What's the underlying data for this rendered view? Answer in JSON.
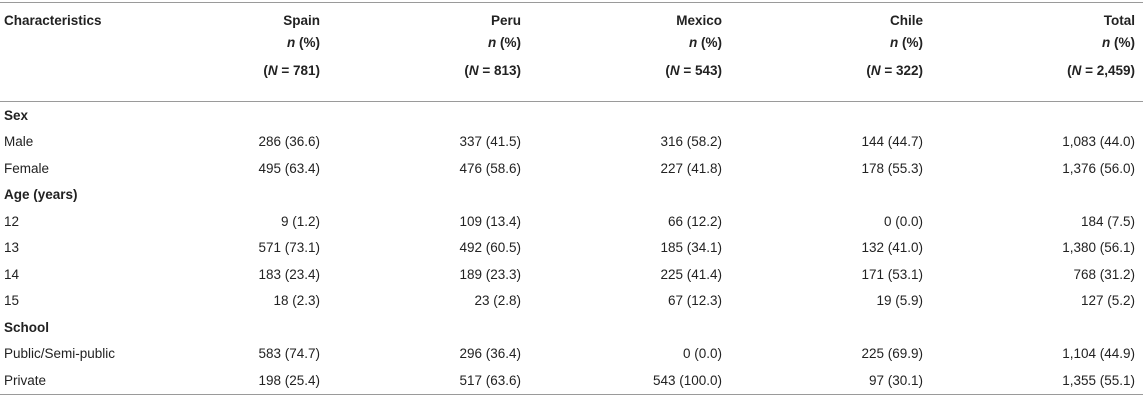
{
  "header": {
    "col0": "Characteristics",
    "countries": [
      {
        "name": "Spain",
        "sub": "n (%)",
        "N": "(N = 781)"
      },
      {
        "name": "Peru",
        "sub": "n (%)",
        "N": "(N = 813)"
      },
      {
        "name": "Mexico",
        "sub": "n (%)",
        "N": "(N = 543)"
      },
      {
        "name": "Chile",
        "sub": "n (%)",
        "N": "(N = 322)"
      },
      {
        "name": "Total",
        "sub": "n (%)",
        "N": "(N = 2,459)"
      }
    ]
  },
  "sections": [
    {
      "title": "Sex",
      "rows": [
        {
          "label": "Male",
          "values": [
            "286 (36.6)",
            "337 (41.5)",
            "316 (58.2)",
            "144 (44.7)",
            "1,083 (44.0)"
          ]
        },
        {
          "label": "Female",
          "values": [
            "495 (63.4)",
            "476 (58.6)",
            "227 (41.8)",
            "178 (55.3)",
            "1,376 (56.0)"
          ]
        }
      ]
    },
    {
      "title": "Age (years)",
      "rows": [
        {
          "label": "12",
          "values": [
            "9 (1.2)",
            "109 (13.4)",
            "66 (12.2)",
            "0 (0.0)",
            "184 (7.5)"
          ]
        },
        {
          "label": "13",
          "values": [
            "571 (73.1)",
            "492 (60.5)",
            "185 (34.1)",
            "132 (41.0)",
            "1,380 (56.1)"
          ]
        },
        {
          "label": "14",
          "values": [
            "183 (23.4)",
            "189 (23.3)",
            "225 (41.4)",
            "171 (53.1)",
            "768 (31.2)"
          ]
        },
        {
          "label": "15",
          "values": [
            "18 (2.3)",
            "23 (2.8)",
            "67 (12.3)",
            "19 (5.9)",
            "127 (5.2)"
          ]
        }
      ]
    },
    {
      "title": "School",
      "rows": [
        {
          "label": "Public/Semi-public",
          "values": [
            "583 (74.7)",
            "296 (36.4)",
            "0 (0.0)",
            "225 (69.9)",
            "1,104 (44.9)"
          ]
        },
        {
          "label": "Private",
          "values": [
            "198 (25.4)",
            "517 (63.6)",
            "543 (100.0)",
            "97 (30.1)",
            "1,355 (55.1)"
          ]
        }
      ]
    }
  ]
}
